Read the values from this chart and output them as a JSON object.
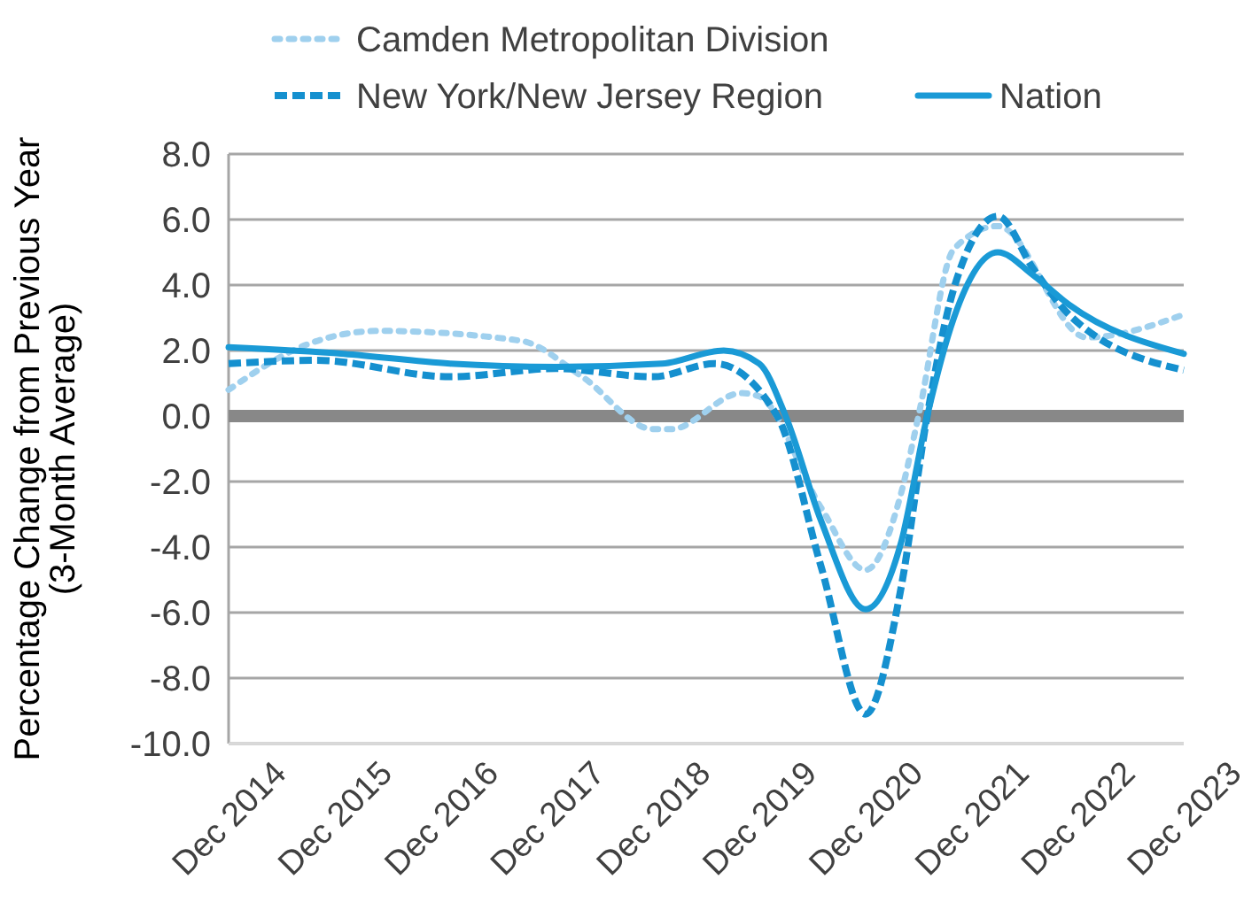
{
  "chart_data": {
    "type": "line",
    "ylabel": "Percentage Change from Previous Year\n(3-Month Average)",
    "xlim": [
      "2014-12",
      "2023-12"
    ],
    "xticks": [
      {
        "value": "2014-12",
        "label": "Dec 2014"
      },
      {
        "value": "2015-12",
        "label": "Dec 2015"
      },
      {
        "value": "2016-12",
        "label": "Dec 2016"
      },
      {
        "value": "2017-12",
        "label": "Dec 2017"
      },
      {
        "value": "2018-12",
        "label": "Dec 2018"
      },
      {
        "value": "2019-12",
        "label": "Dec 2019"
      },
      {
        "value": "2020-12",
        "label": "Dec 2020"
      },
      {
        "value": "2021-12",
        "label": "Dec 2021"
      },
      {
        "value": "2022-12",
        "label": "Dec 2022"
      },
      {
        "value": "2023-12",
        "label": "Dec 2023"
      }
    ],
    "ylim": [
      -10,
      8
    ],
    "yticks": [
      {
        "value": -10,
        "label": "-10.0"
      },
      {
        "value": -8,
        "label": "-8.0"
      },
      {
        "value": -6,
        "label": "-6.0"
      },
      {
        "value": -4,
        "label": "-4.0"
      },
      {
        "value": -2,
        "label": "-2.0"
      },
      {
        "value": 0,
        "label": "0.0"
      },
      {
        "value": 2,
        "label": "2.0"
      },
      {
        "value": 4,
        "label": "4.0"
      },
      {
        "value": 6,
        "label": "6.0"
      },
      {
        "value": 8,
        "label": "8.0"
      }
    ],
    "grid": "y",
    "legend": "top",
    "marker": "none",
    "ref_lines": [
      {
        "axis": "y",
        "value": 0,
        "color": "#888888"
      }
    ],
    "series": [
      {
        "name": "Camden Metropolitan Division",
        "color": "#9fd0ee",
        "line_style": "dotted",
        "x": [
          "2014-12",
          "2015-09",
          "2016-05",
          "2017-09",
          "2018-04",
          "2018-12",
          "2019-02",
          "2019-10",
          "2019-12",
          "2020-07",
          "2020-12",
          "2021-04",
          "2021-06",
          "2021-10",
          "2022-03",
          "2023-01",
          "2023-12"
        ],
        "values": [
          0.8,
          2.2,
          2.6,
          2.3,
          1.2,
          -0.4,
          -0.4,
          0.7,
          0.6,
          -2.8,
          -4.7,
          -2.4,
          0.0,
          5.1,
          5.8,
          2.4,
          3.1
        ]
      },
      {
        "name": "New York/New Jersey Region",
        "color": "#1590cf",
        "line_style": "dashed",
        "x": [
          "2014-12",
          "2015-10",
          "2017-01",
          "2018-01",
          "2018-12",
          "2019-07",
          "2020-02",
          "2020-07",
          "2020-12",
          "2021-04",
          "2021-07",
          "2021-10",
          "2022-03",
          "2022-07",
          "2022-11",
          "2023-12"
        ],
        "values": [
          1.6,
          1.7,
          1.2,
          1.45,
          1.2,
          1.6,
          0.0,
          -4.6,
          -9.1,
          -5.3,
          0.0,
          3.9,
          6.1,
          4.5,
          3.1,
          1.4
        ]
      },
      {
        "name": "Nation",
        "color": "#1a9ad6",
        "line_style": "solid",
        "x": [
          "2014-12",
          "2016-01",
          "2017-01",
          "2018-01",
          "2019-01",
          "2019-08",
          "2019-12",
          "2020-03",
          "2020-07",
          "2020-12",
          "2021-04",
          "2021-07",
          "2021-10",
          "2022-03",
          "2022-07",
          "2022-11",
          "2023-12"
        ],
        "values": [
          2.1,
          1.9,
          1.6,
          1.5,
          1.6,
          2.0,
          1.6,
          0.0,
          -3.2,
          -5.9,
          -3.9,
          0.0,
          3.0,
          5.0,
          4.3,
          3.4,
          1.9
        ]
      }
    ]
  }
}
